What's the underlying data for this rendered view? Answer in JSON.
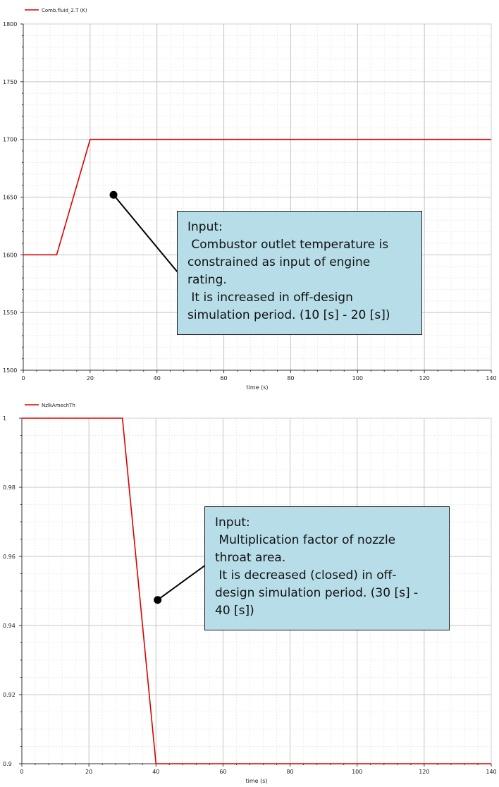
{
  "chart_data": [
    {
      "type": "line",
      "legend": "Comb.fluid_2.T (K)",
      "legend_position": "top-left",
      "xlabel": "time (s)",
      "ylabel": "",
      "xlim": [
        0,
        140
      ],
      "ylim": [
        1500,
        1800
      ],
      "xticks": [
        "0",
        "20",
        "40",
        "60",
        "80",
        "100",
        "120",
        "140"
      ],
      "yticks": [
        "1500",
        "1550",
        "1600",
        "1650",
        "1700",
        "1750",
        "1800"
      ],
      "grid": true,
      "series_color": "#dd0000",
      "series": [
        {
          "name": "Comb.fluid_2.T (K)",
          "x": [
            0,
            10,
            20,
            140
          ],
          "y": [
            1600,
            1600,
            1700,
            1700
          ]
        }
      ],
      "annotation": {
        "lines": [
          "Input:",
          " Combustor outlet temperature is",
          "constrained as input of engine",
          "rating.",
          " It is increased in off-design",
          "simulation period. (10 [s] - 20 [s])"
        ],
        "point": [
          27,
          1652
        ]
      }
    },
    {
      "type": "line",
      "legend": "NzlkAmechTh",
      "legend_position": "top-left",
      "xlabel": "time (s)",
      "ylabel": "",
      "xlim": [
        0,
        140
      ],
      "ylim": [
        0.9,
        1.0
      ],
      "xticks": [
        "0",
        "20",
        "40",
        "60",
        "80",
        "100",
        "120",
        "140"
      ],
      "yticks": [
        "0.9",
        "0.92",
        "0.94",
        "0.96",
        "0.98",
        "1"
      ],
      "grid": true,
      "series_color": "#dd0000",
      "series": [
        {
          "name": "NzlkAmechTh",
          "x": [
            0,
            30,
            40,
            140
          ],
          "y": [
            1.0,
            1.0,
            0.9,
            0.9
          ]
        }
      ],
      "annotation": {
        "lines": [
          "Input:",
          " Multiplication factor of nozzle",
          "throat area.",
          " It is decreased (closed) in off-",
          "design simulation period. (30 [s] -",
          "40 [s])"
        ],
        "point": [
          40.5,
          0.9474
        ]
      }
    }
  ]
}
